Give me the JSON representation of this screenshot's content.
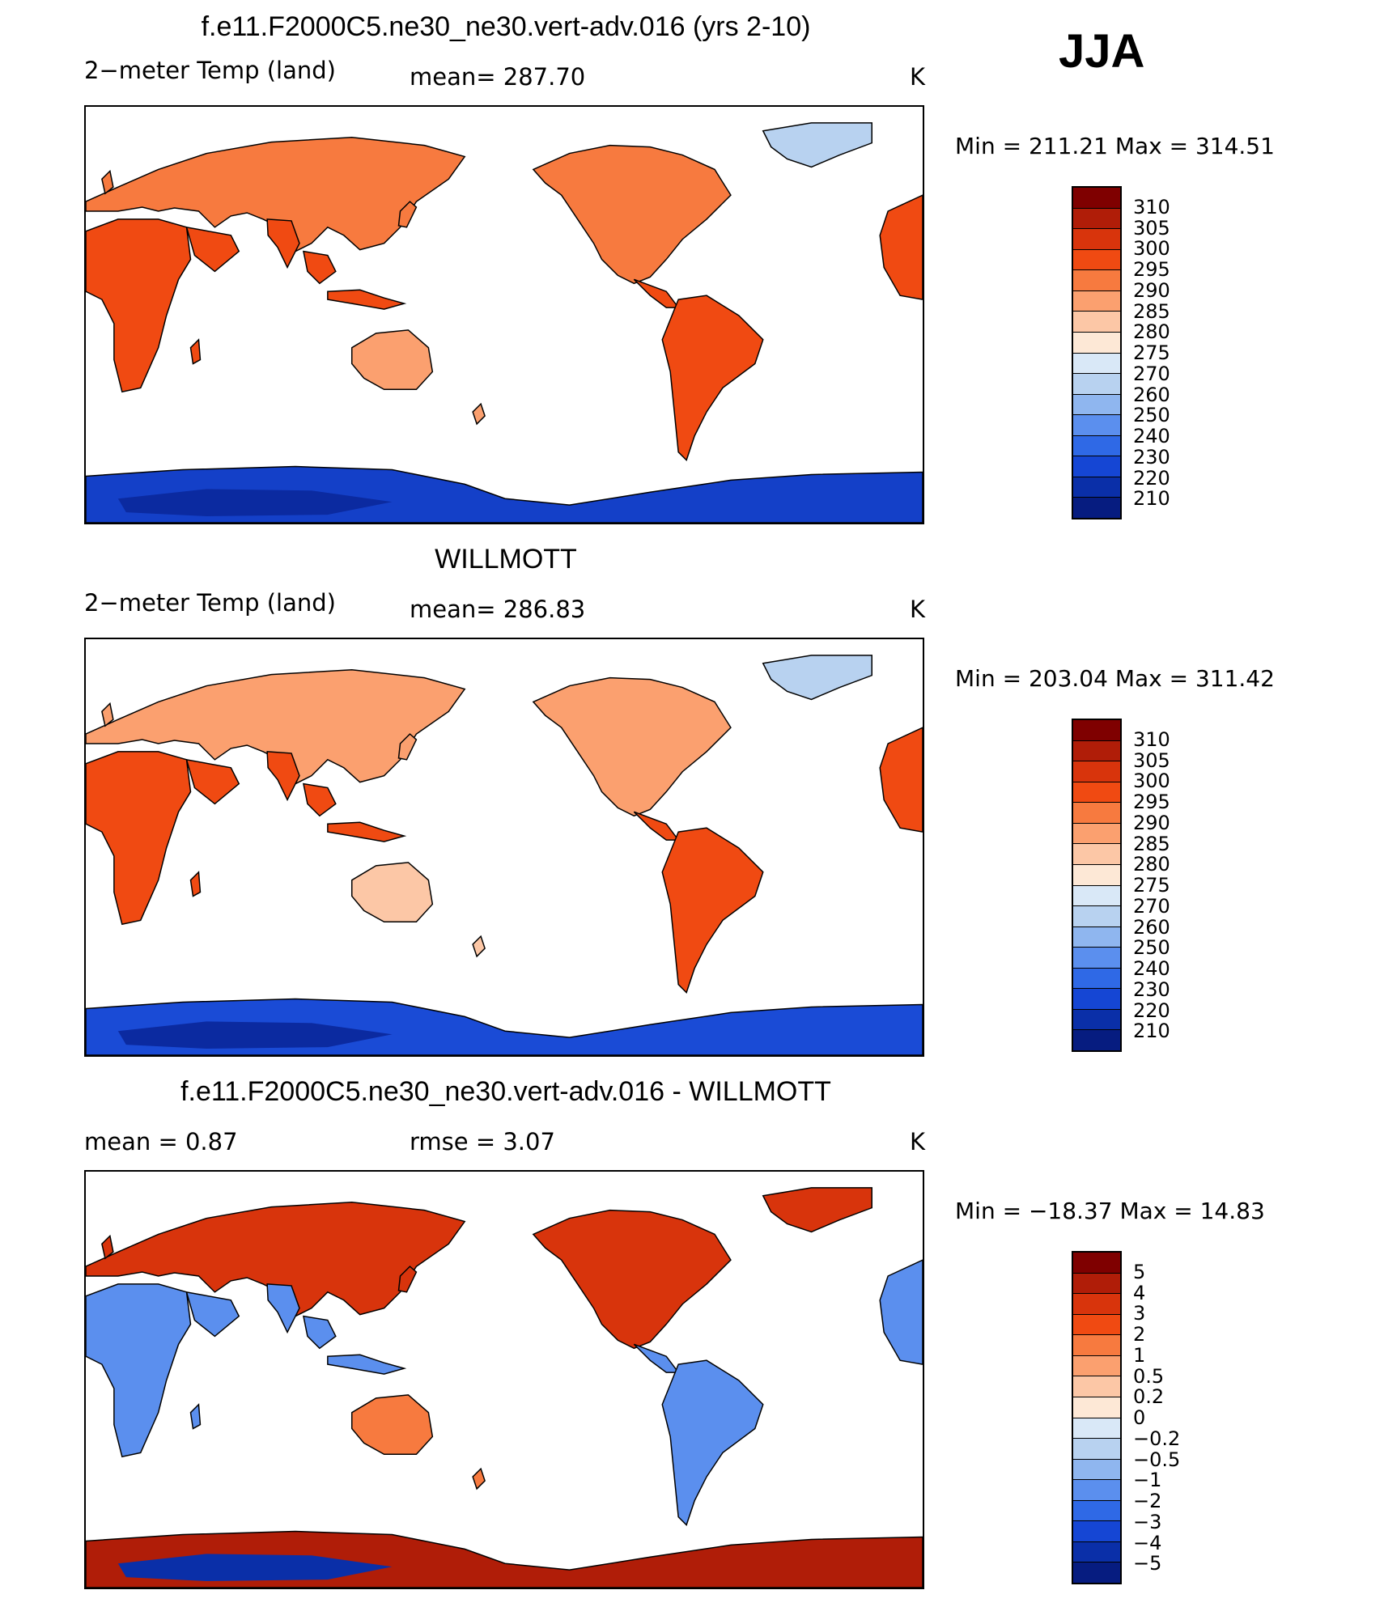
{
  "season": "JJA",
  "panels": [
    {
      "title": "f.e11.F2000C5.ne30_ne30.vert-adv.016 (yrs 2-10)",
      "left": "2−meter Temp (land)",
      "middle": "mean=  287.70",
      "units": "K",
      "minmax": "Min  =  211.21  Max  =  314.51",
      "levels": [
        "310",
        "305",
        "300",
        "295",
        "290",
        "285",
        "280",
        "275",
        "270",
        "260",
        "250",
        "240",
        "230",
        "220",
        "210"
      ],
      "colors": [
        "#7f0000",
        "#b01d08",
        "#d8340c",
        "#f04a12",
        "#f77a3f",
        "#fba06f",
        "#fcc7a6",
        "#fde8d6",
        "#d9e8f7",
        "#b8d2f0",
        "#8fb6ef",
        "#5b8fee",
        "#2f69e6",
        "#1546d4",
        "#0a2fa8",
        "#061c80"
      ],
      "map": {
        "antarctic_color": "#1440c8",
        "antarctic_deep": "#0b2aa0",
        "greenland": "#b8d2f0"
      }
    },
    {
      "title": "WILLMOTT",
      "left": "2−meter Temp (land)",
      "middle": "mean=  286.83",
      "units": "K",
      "minmax": "Min  =  203.04  Max  =  311.42",
      "levels": [
        "310",
        "305",
        "300",
        "295",
        "290",
        "285",
        "280",
        "275",
        "270",
        "260",
        "250",
        "240",
        "230",
        "220",
        "210"
      ],
      "colors": [
        "#7f0000",
        "#b01d08",
        "#d8340c",
        "#f04a12",
        "#f77a3f",
        "#fba06f",
        "#fcc7a6",
        "#fde8d6",
        "#d9e8f7",
        "#b8d2f0",
        "#8fb6ef",
        "#5b8fee",
        "#2f69e6",
        "#1546d4",
        "#0a2fa8",
        "#061c80"
      ],
      "map": {
        "antarctic_color": "#1a4bd6",
        "antarctic_deep": "#0b2aa0",
        "greenland": "#b8d2f0"
      }
    },
    {
      "title": "f.e11.F2000C5.ne30_ne30.vert-adv.016 - WILLMOTT",
      "left": "mean  =      0.87",
      "middle": "rmse  =      3.07",
      "units": "K",
      "minmax": "Min  =  −18.37  Max  =     14.83",
      "levels": [
        "5",
        "4",
        "3",
        "2",
        "1",
        "0.5",
        "0.2",
        "0",
        "−0.2",
        "−0.5",
        "−1",
        "−2",
        "−3",
        "−4",
        "−5"
      ],
      "colors": [
        "#7f0000",
        "#b01d08",
        "#d8340c",
        "#f04a12",
        "#f77a3f",
        "#fba06f",
        "#fcc7a6",
        "#fde8d6",
        "#d9e8f7",
        "#b8d2f0",
        "#8fb6ef",
        "#5b8fee",
        "#2f69e6",
        "#1546d4",
        "#0a2fa8",
        "#061c80"
      ],
      "map": {
        "antarctic_color": "#b01d08",
        "antarctic_deep": "#0a2fa8",
        "greenland": "#d8340c"
      }
    }
  ]
}
